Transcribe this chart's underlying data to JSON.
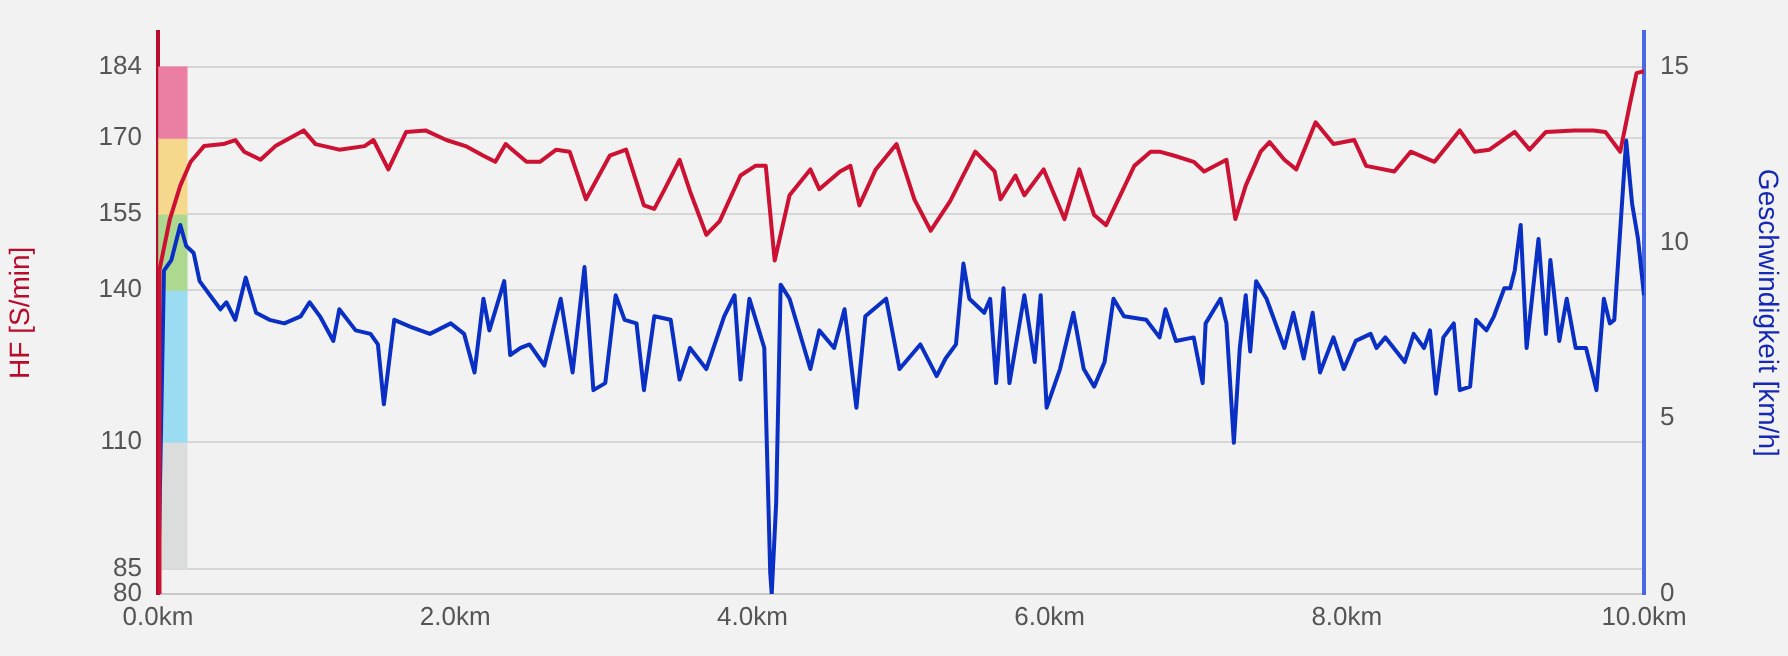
{
  "chart_data": {
    "type": "line",
    "ylabel": "HF [S/min]",
    "y2label": "Geschwindigkeit [km/h]",
    "xlim": [
      0,
      10
    ],
    "xticks": [
      {
        "value": 0,
        "label": "0.0km"
      },
      {
        "value": 2,
        "label": "2.0km"
      },
      {
        "value": 4,
        "label": "4.0km"
      },
      {
        "value": 6,
        "label": "6.0km"
      },
      {
        "value": 8,
        "label": "8.0km"
      },
      {
        "value": 10,
        "label": "10.0km"
      }
    ],
    "ylim": [
      80,
      191
    ],
    "yticks": [
      80,
      85,
      110,
      140,
      155,
      170,
      184
    ],
    "y2lim": [
      0,
      16
    ],
    "y2ticks": [
      0,
      5,
      10,
      15
    ],
    "grid": "y",
    "legend": false,
    "marker": "none",
    "line_style": "solid",
    "series": [
      {
        "type": "bar",
        "x": [
          0.1
        ],
        "base": [
          170
        ],
        "values": [
          14
        ],
        "color": "#ea7fa3"
      },
      {
        "type": "bar",
        "x": [
          0.1
        ],
        "base": [
          155
        ],
        "values": [
          15
        ],
        "color": "#f6d88c"
      },
      {
        "type": "bar",
        "x": [
          0.1
        ],
        "base": [
          140
        ],
        "values": [
          15
        ],
        "color": "#acd98f"
      },
      {
        "type": "bar",
        "x": [
          0.1
        ],
        "base": [
          110
        ],
        "values": [
          30
        ],
        "color": "#9bdcf2"
      },
      {
        "type": "bar",
        "x": [
          0.1
        ],
        "base": [
          85
        ],
        "values": [
          25
        ],
        "color": "#dadddc"
      },
      {
        "color": "#cc1133",
        "x": [
          0,
          0.01,
          0.08,
          0.15,
          0.22,
          0.31,
          0.44,
          0.52,
          0.58,
          0.69,
          0.79,
          0.98,
          1.06,
          1.22,
          1.39,
          1.45,
          1.55,
          1.67,
          1.8,
          1.94,
          2.07,
          2.19,
          2.27,
          2.34,
          2.48,
          2.57,
          2.68,
          2.77,
          2.88,
          3.04,
          3.15,
          3.27,
          3.34,
          3.41,
          3.51,
          3.58,
          3.69,
          3.78,
          3.92,
          4.02,
          4.09,
          4.15,
          4.25,
          4.39,
          4.45,
          4.59,
          4.66,
          4.72,
          4.83,
          4.97,
          5.09,
          5.2,
          5.33,
          5.5,
          5.63,
          5.67,
          5.77,
          5.83,
          5.96,
          6.1,
          6.2,
          6.3,
          6.38,
          6.57,
          6.68,
          6.74,
          6.84,
          6.97,
          7.04,
          7.19,
          7.25,
          7.32,
          7.42,
          7.48,
          7.58,
          7.66,
          7.79,
          7.91,
          8.05,
          8.13,
          8.32,
          8.43,
          8.59,
          8.76,
          8.86,
          8.96,
          9.13,
          9.23,
          9.34,
          9.53,
          9.66,
          9.74,
          9.84,
          9.91,
          9.95,
          10
        ],
        "values": [
          80,
          144,
          154,
          160.6,
          165.3,
          168.4,
          168.8,
          169.6,
          167.3,
          165.7,
          168.4,
          171.5,
          168.8,
          167.7,
          168.4,
          169.6,
          163.8,
          171.2,
          171.5,
          169.6,
          168.4,
          166.5,
          165.3,
          168.8,
          165.3,
          165.3,
          167.7,
          167.3,
          157.9,
          166.5,
          167.7,
          156.7,
          156,
          159.9,
          165.7,
          159.5,
          150.9,
          153.6,
          162.6,
          164.5,
          164.5,
          145.8,
          158.7,
          163.8,
          159.9,
          163.4,
          164.5,
          156.7,
          163.8,
          168.8,
          157.9,
          151.7,
          157.5,
          167.3,
          163.4,
          157.9,
          162.6,
          158.7,
          163.8,
          154,
          163.8,
          154.8,
          152.8,
          164.5,
          167.3,
          167.3,
          166.5,
          165.3,
          163.4,
          165.7,
          154,
          160.6,
          167.3,
          169.2,
          165.7,
          163.8,
          173.1,
          168.8,
          169.6,
          164.5,
          163.4,
          167.3,
          165.3,
          171.5,
          167.3,
          167.7,
          171.2,
          167.7,
          171.2,
          171.5,
          171.5,
          171.2,
          167.3,
          177.4,
          182.8,
          183.2
        ]
      },
      {
        "color": "#0a2fc4",
        "axis": "y2",
        "x": [
          0,
          0.04,
          0.09,
          0.15,
          0.19,
          0.24,
          0.28,
          0.35,
          0.42,
          0.46,
          0.52,
          0.59,
          0.66,
          0.75,
          0.85,
          0.96,
          1.02,
          1.09,
          1.18,
          1.22,
          1.33,
          1.43,
          1.48,
          1.52,
          1.59,
          1.7,
          1.83,
          1.97,
          2.06,
          2.13,
          2.19,
          2.23,
          2.33,
          2.37,
          2.44,
          2.5,
          2.6,
          2.71,
          2.79,
          2.87,
          2.93,
          3.01,
          3.08,
          3.14,
          3.22,
          3.27,
          3.34,
          3.45,
          3.51,
          3.58,
          3.69,
          3.81,
          3.88,
          3.92,
          3.98,
          4.08,
          4.12,
          4.13,
          4.16,
          4.19,
          4.25,
          4.39,
          4.45,
          4.55,
          4.62,
          4.7,
          4.76,
          4.9,
          4.99,
          5.13,
          5.24,
          5.3,
          5.37,
          5.42,
          5.46,
          5.56,
          5.6,
          5.64,
          5.69,
          5.73,
          5.83,
          5.9,
          5.94,
          5.98,
          6.07,
          6.16,
          6.23,
          6.3,
          6.37,
          6.43,
          6.5,
          6.65,
          6.74,
          6.78,
          6.85,
          6.97,
          7.03,
          7.05,
          7.15,
          7.19,
          7.24,
          7.28,
          7.32,
          7.35,
          7.39,
          7.46,
          7.58,
          7.64,
          7.71,
          7.77,
          7.82,
          7.91,
          7.98,
          8.06,
          8.16,
          8.2,
          8.26,
          8.39,
          8.45,
          8.52,
          8.56,
          8.6,
          8.65,
          8.72,
          8.76,
          8.83,
          8.87,
          8.94,
          8.99,
          9.06,
          9.1,
          9.13,
          9.17,
          9.21,
          9.29,
          9.34,
          9.37,
          9.43,
          9.48,
          9.54,
          9.61,
          9.68,
          9.73,
          9.77,
          9.8,
          9.88,
          9.92,
          9.96,
          10
        ],
        "values": [
          0,
          9.2,
          9.5,
          10.5,
          9.9,
          9.7,
          8.9,
          8.5,
          8.1,
          8.3,
          7.8,
          9,
          8,
          7.8,
          7.7,
          7.9,
          8.3,
          7.9,
          7.2,
          8.1,
          7.5,
          7.4,
          7.1,
          5.4,
          7.8,
          7.6,
          7.4,
          7.7,
          7.4,
          6.3,
          8.4,
          7.5,
          8.9,
          6.8,
          7,
          7.1,
          6.5,
          8.4,
          6.3,
          9.3,
          5.8,
          6,
          8.5,
          7.8,
          7.7,
          5.8,
          7.9,
          7.8,
          6.1,
          7,
          6.4,
          7.9,
          8.5,
          6.1,
          8.4,
          7,
          0.6,
          0,
          2.6,
          8.8,
          8.4,
          6.4,
          7.5,
          7,
          8.1,
          5.3,
          7.9,
          8.4,
          6.4,
          7.1,
          6.2,
          6.7,
          7.1,
          9.4,
          8.4,
          8,
          8.4,
          6,
          8.7,
          6,
          8.5,
          6.6,
          8.5,
          5.3,
          6.4,
          8,
          6.4,
          5.9,
          6.6,
          8.4,
          7.9,
          7.8,
          7.3,
          8.1,
          7.2,
          7.3,
          6,
          7.7,
          8.4,
          7.7,
          4.3,
          7,
          8.5,
          6.9,
          8.9,
          8.4,
          7,
          8,
          6.7,
          8,
          6.3,
          7.3,
          6.4,
          7.2,
          7.4,
          7,
          7.3,
          6.6,
          7.4,
          7,
          7.5,
          5.7,
          7.3,
          7.7,
          5.8,
          5.9,
          7.8,
          7.5,
          7.9,
          8.7,
          8.7,
          9.2,
          10.5,
          7,
          10.1,
          7.4,
          9.5,
          7.2,
          8.4,
          7,
          7,
          5.8,
          8.4,
          7.7,
          7.8,
          12.9,
          11.1,
          10.1,
          8.5
        ]
      }
    ]
  }
}
